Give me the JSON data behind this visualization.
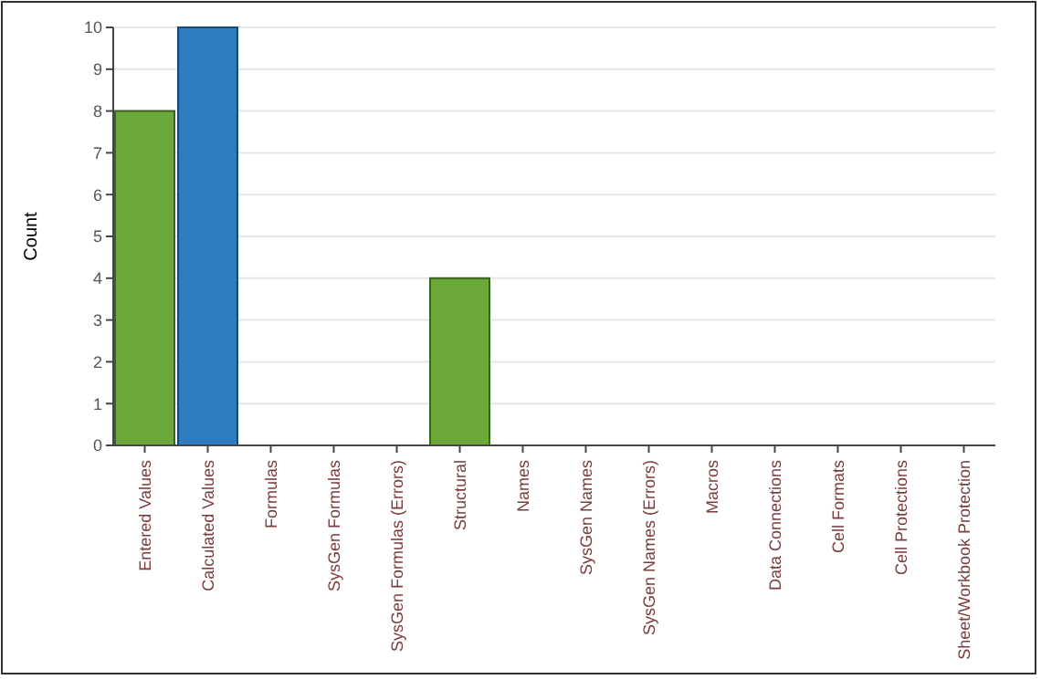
{
  "chart_data": {
    "type": "bar",
    "ylabel": "Count",
    "categories": [
      "Entered Values",
      "Calculated Values",
      "Formulas",
      "SysGen Formulas",
      "SysGen Formulas (Errors)",
      "Structural",
      "Names",
      "SysGen Names",
      "SysGen Names (Errors)",
      "Macros",
      "Data Connections",
      "Cell Formats",
      "Cell Protections",
      "Sheet/Workbook Protection"
    ],
    "values": [
      8,
      10,
      0,
      0,
      0,
      4,
      0,
      0,
      0,
      0,
      0,
      0,
      0,
      0
    ],
    "colors": [
      "#6aa83a",
      "#2d7cc0",
      "#6aa83a",
      "#2d7cc0",
      "#6aa83a",
      "#6aa83a",
      "#2d7cc0",
      "#6aa83a",
      "#2d7cc0",
      "#6aa83a",
      "#2d7cc0",
      "#6aa83a",
      "#2d7cc0",
      "#6aa83a"
    ],
    "ylim": [
      0,
      10
    ],
    "yticks": [
      0,
      1,
      2,
      3,
      4,
      5,
      6,
      7,
      8,
      9,
      10
    ],
    "grid": "y"
  }
}
